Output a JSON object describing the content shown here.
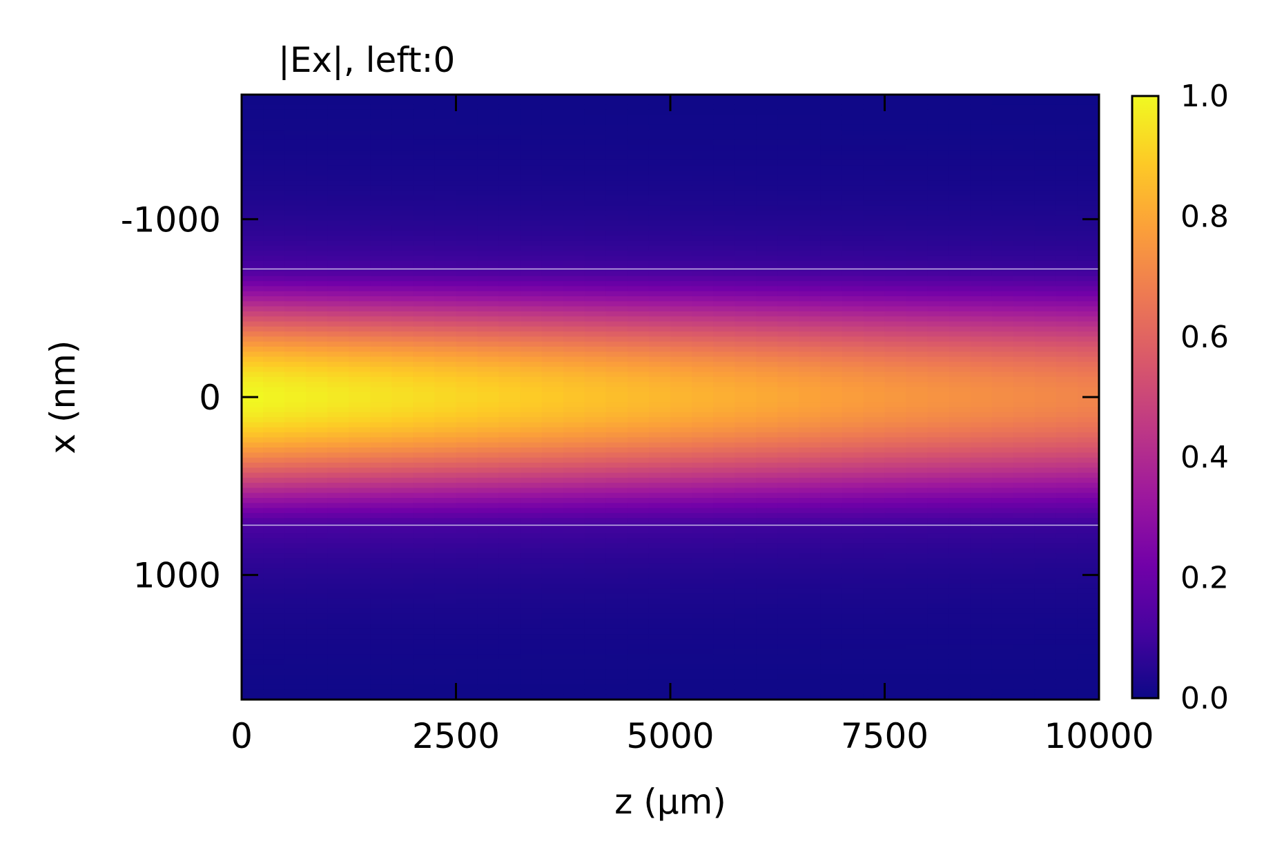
{
  "chart_data": {
    "type": "heatmap",
    "title": "|Ex|, left:0",
    "xlabel": "z (µm)",
    "ylabel": "x (nm)",
    "xlim": [
      0,
      10000
    ],
    "ylim": [
      -1700,
      1700
    ],
    "y_inverted": true,
    "x_ticks": [
      {
        "value": 0,
        "label": "0"
      },
      {
        "value": 2500,
        "label": "2500"
      },
      {
        "value": 5000,
        "label": "5000"
      },
      {
        "value": 7500,
        "label": "7500"
      },
      {
        "value": 10000,
        "label": "10000"
      }
    ],
    "y_ticks": [
      {
        "value": -1000,
        "label": "-1000"
      },
      {
        "value": 0,
        "label": "0"
      },
      {
        "value": 1000,
        "label": "1000"
      }
    ],
    "colormap": "plasma",
    "colorbar": {
      "range": [
        0.0,
        1.0
      ],
      "ticks": [
        {
          "value": 0.0,
          "label": "0.0"
        },
        {
          "value": 0.2,
          "label": "0.2"
        },
        {
          "value": 0.4,
          "label": "0.4"
        },
        {
          "value": 0.6,
          "label": "0.6"
        },
        {
          "value": 0.8,
          "label": "0.8"
        },
        {
          "value": 1.0,
          "label": "1.0"
        }
      ]
    },
    "field_model": {
      "peak_at_z": [
        [
          0,
          1.0
        ],
        [
          2500,
          0.92
        ],
        [
          5000,
          0.84
        ],
        [
          7500,
          0.76
        ],
        [
          10000,
          0.7
        ]
      ],
      "core_half_width_nm": 720
    },
    "core_boundaries_nm": [
      -720,
      720
    ],
    "grid": false,
    "ticks_direction": "in"
  },
  "colors": {
    "boundary_line": "#c8b8e8",
    "axes": "#000000",
    "plasma_stops": [
      "#0d0887",
      "#46039f",
      "#7201a8",
      "#9c179e",
      "#bd3786",
      "#d8576b",
      "#ed7953",
      "#fb9f3a",
      "#fdca26",
      "#f0f921"
    ]
  }
}
